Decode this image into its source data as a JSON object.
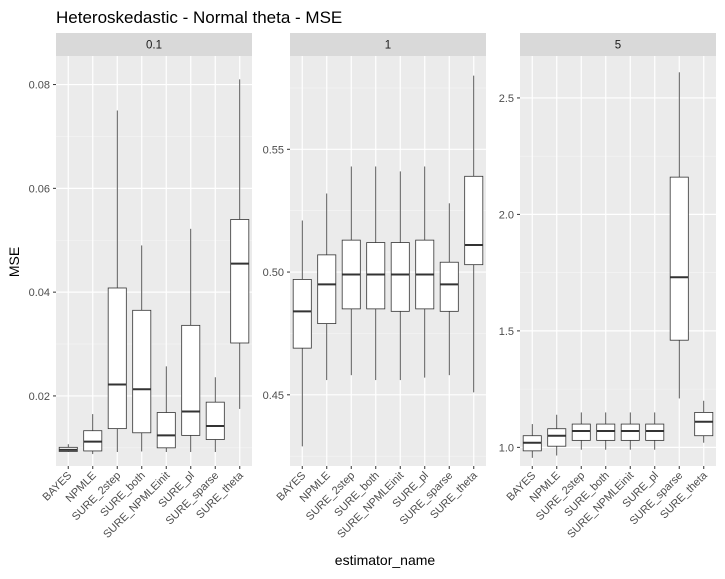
{
  "chart_data": {
    "type": "boxplot",
    "title": "Heteroskedastic - Normal theta - MSE",
    "xlabel": "estimator_name",
    "ylabel": "MSE",
    "colors": {
      "panel_bg": "#ebebeb",
      "grid_major": "#ffffff",
      "grid_minor": "#f5f5f5",
      "strip_bg": "#d9d9d9",
      "box_fill": "#ffffff",
      "box_line": "#333333"
    },
    "categories": [
      "BAYES",
      "NPMLE",
      "SURE_2step",
      "SURE_both",
      "SURE_NPMLEinit",
      "SURE_pl",
      "SURE_sparse",
      "SURE_theta"
    ],
    "facets": [
      {
        "label": "0.1",
        "ylim": [
          0.0065,
          0.0855
        ],
        "yticks": [
          0.02,
          0.04,
          0.06,
          0.08
        ],
        "ytick_labels": [
          "0.02",
          "0.04",
          "0.06",
          "0.08"
        ],
        "boxes": [
          {
            "min": 0.0092,
            "q1": 0.0093,
            "median": 0.0096,
            "q3": 0.0101,
            "max": 0.0107
          },
          {
            "min": 0.0088,
            "q1": 0.0094,
            "median": 0.0112,
            "q3": 0.0133,
            "max": 0.0165
          },
          {
            "min": 0.0092,
            "q1": 0.0137,
            "median": 0.0222,
            "q3": 0.0408,
            "max": 0.075
          },
          {
            "min": 0.0093,
            "q1": 0.0129,
            "median": 0.0213,
            "q3": 0.0365,
            "max": 0.049
          },
          {
            "min": 0.0092,
            "q1": 0.01,
            "median": 0.0124,
            "q3": 0.0168,
            "max": 0.0257
          },
          {
            "min": 0.0092,
            "q1": 0.0124,
            "median": 0.017,
            "q3": 0.0336,
            "max": 0.0522
          },
          {
            "min": 0.0092,
            "q1": 0.0116,
            "median": 0.0142,
            "q3": 0.0188,
            "max": 0.0236
          },
          {
            "min": 0.0175,
            "q1": 0.0302,
            "median": 0.0455,
            "q3": 0.054,
            "max": 0.081
          }
        ]
      },
      {
        "label": "1",
        "ylim": [
          0.421,
          0.588
        ],
        "yticks": [
          0.45,
          0.5,
          0.55
        ],
        "ytick_labels": [
          "0.45",
          "0.50",
          "0.55"
        ],
        "boxes": [
          {
            "min": 0.429,
            "q1": 0.469,
            "median": 0.484,
            "q3": 0.497,
            "max": 0.521
          },
          {
            "min": 0.456,
            "q1": 0.479,
            "median": 0.495,
            "q3": 0.507,
            "max": 0.532
          },
          {
            "min": 0.458,
            "q1": 0.485,
            "median": 0.499,
            "q3": 0.513,
            "max": 0.543
          },
          {
            "min": 0.456,
            "q1": 0.485,
            "median": 0.499,
            "q3": 0.512,
            "max": 0.543
          },
          {
            "min": 0.456,
            "q1": 0.484,
            "median": 0.499,
            "q3": 0.512,
            "max": 0.541
          },
          {
            "min": 0.457,
            "q1": 0.485,
            "median": 0.499,
            "q3": 0.513,
            "max": 0.543
          },
          {
            "min": 0.458,
            "q1": 0.484,
            "median": 0.495,
            "q3": 0.504,
            "max": 0.528
          },
          {
            "min": 0.451,
            "q1": 0.503,
            "median": 0.511,
            "q3": 0.539,
            "max": 0.58
          }
        ]
      },
      {
        "label": "5",
        "ylim": [
          0.92,
          2.68
        ],
        "yticks": [
          1.0,
          1.5,
          2.0,
          2.5
        ],
        "ytick_labels": [
          "1.0",
          "1.5",
          "2.0",
          "2.5"
        ],
        "boxes": [
          {
            "min": 0.955,
            "q1": 0.985,
            "median": 1.02,
            "q3": 1.05,
            "max": 1.1
          },
          {
            "min": 0.965,
            "q1": 1.005,
            "median": 1.05,
            "q3": 1.08,
            "max": 1.14
          },
          {
            "min": 0.99,
            "q1": 1.03,
            "median": 1.07,
            "q3": 1.1,
            "max": 1.15
          },
          {
            "min": 0.99,
            "q1": 1.03,
            "median": 1.07,
            "q3": 1.1,
            "max": 1.15
          },
          {
            "min": 0.99,
            "q1": 1.03,
            "median": 1.07,
            "q3": 1.1,
            "max": 1.15
          },
          {
            "min": 0.99,
            "q1": 1.03,
            "median": 1.07,
            "q3": 1.1,
            "max": 1.15
          },
          {
            "min": 1.21,
            "q1": 1.46,
            "median": 1.73,
            "q3": 2.16,
            "max": 2.61
          },
          {
            "min": 1.02,
            "q1": 1.05,
            "median": 1.11,
            "q3": 1.15,
            "max": 1.2
          }
        ]
      }
    ]
  }
}
